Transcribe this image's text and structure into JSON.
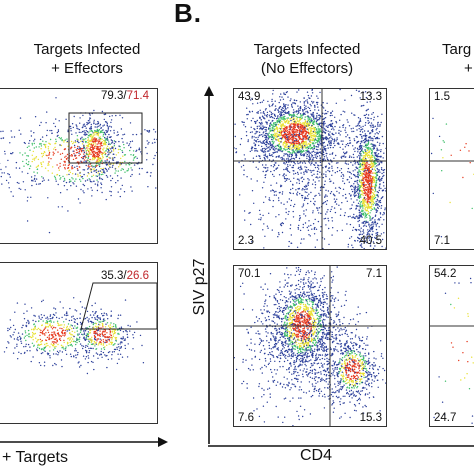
{
  "panel_b_letter": "B.",
  "columns": {
    "left_title": [
      "Targets Infected",
      "+ Effectors"
    ],
    "middle_title": [
      "Targets Infected",
      "(No Effectors)"
    ],
    "right_title_partial": [
      "Targ",
      "+"
    ]
  },
  "axes": {
    "left_x_label": "+ Targets",
    "y_label": "SIV p27",
    "x_label": "CD4"
  },
  "colors": {
    "axis": "#111111",
    "plot_border": "#333333",
    "red_value": "#c0262b",
    "density_low": "#2b3f9a",
    "density_mid": "#3fbf6a",
    "density_high": "#e8e030",
    "density_peak": "#e63a1f"
  },
  "chart_data": [
    {
      "type": "scatter",
      "id": "left-top",
      "gate_label_black": "79.3/",
      "gate_label_red": "71.4",
      "populations": [
        {
          "name": "",
          "cx": 0.5,
          "cy": 0.55,
          "sx": 0.3,
          "sy": 0.12,
          "n": 700
        },
        {
          "name": "",
          "cx": 0.62,
          "cy": 0.62,
          "sx": 0.06,
          "sy": 0.1,
          "n": 500
        }
      ]
    },
    {
      "type": "scatter",
      "id": "left-bottom",
      "gate_label_black": "35.3/",
      "gate_label_red": "26.6",
      "populations": [
        {
          "name": "",
          "cx": 0.35,
          "cy": 0.55,
          "sx": 0.15,
          "sy": 0.08,
          "n": 500
        },
        {
          "name": "",
          "cx": 0.66,
          "cy": 0.55,
          "sx": 0.09,
          "sy": 0.08,
          "n": 350
        }
      ]
    },
    {
      "type": "scatter",
      "id": "middle-top",
      "quadrants": {
        "top_left": "43.9",
        "top_right": "13.3",
        "bottom_left": "2.3",
        "bottom_right": "40.5"
      },
      "populations": [
        {
          "name": "",
          "cx": 0.4,
          "cy": 0.72,
          "sx": 0.14,
          "sy": 0.1,
          "n": 1700
        },
        {
          "name": "",
          "cx": 0.88,
          "cy": 0.42,
          "sx": 0.05,
          "sy": 0.2,
          "n": 1200
        },
        {
          "name": "",
          "cx": 0.5,
          "cy": 0.45,
          "sx": 0.22,
          "sy": 0.22,
          "n": 700
        }
      ]
    },
    {
      "type": "scatter",
      "id": "middle-bottom",
      "quadrants": {
        "top_left": "70.1",
        "top_right": "7.1",
        "bottom_left": "7.6",
        "bottom_right": "15.3"
      },
      "populations": [
        {
          "name": "",
          "cx": 0.45,
          "cy": 0.63,
          "sx": 0.1,
          "sy": 0.14,
          "n": 1300
        },
        {
          "name": "",
          "cx": 0.78,
          "cy": 0.35,
          "sx": 0.08,
          "sy": 0.1,
          "n": 500
        },
        {
          "name": "",
          "cx": 0.5,
          "cy": 0.45,
          "sx": 0.22,
          "sy": 0.2,
          "n": 700
        }
      ]
    },
    {
      "type": "scatter",
      "id": "right-top-partial",
      "quadrants": {
        "top_left": "1.5",
        "bottom_left": "7.1"
      },
      "populations": [
        {
          "name": "",
          "cx": 0.5,
          "cy": 0.5,
          "sx": 0.3,
          "sy": 0.3,
          "n": 30
        }
      ]
    },
    {
      "type": "scatter",
      "id": "right-bottom-partial",
      "quadrants": {
        "top_left": "54.2",
        "bottom_left": "24.7"
      },
      "populations": [
        {
          "name": "",
          "cx": 0.5,
          "cy": 0.5,
          "sx": 0.3,
          "sy": 0.3,
          "n": 40
        }
      ]
    }
  ]
}
